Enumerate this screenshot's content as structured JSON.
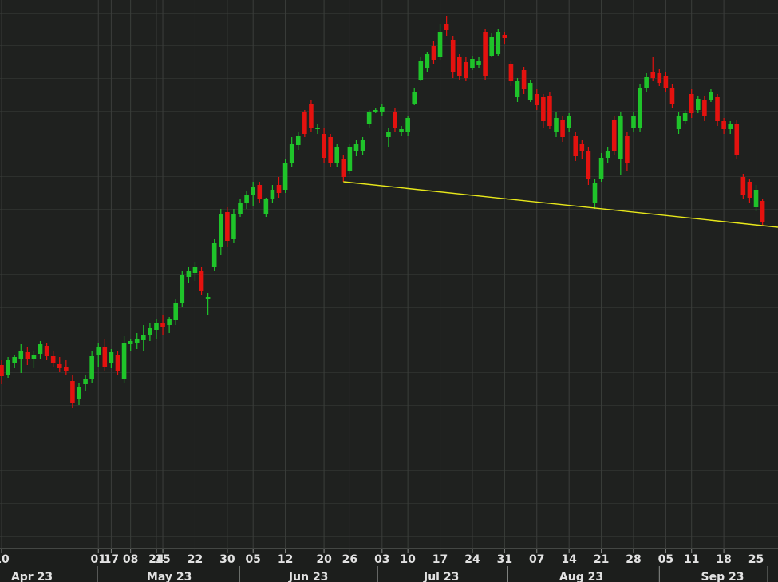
{
  "chart_data": {
    "type": "candlestick",
    "x": [
      0,
      1,
      2,
      3,
      4,
      5,
      6,
      7,
      8,
      9,
      10,
      11,
      12,
      13,
      14,
      15,
      16,
      17,
      18,
      19,
      20,
      21,
      22,
      23,
      24,
      25,
      26,
      27,
      28,
      29,
      30,
      31,
      32,
      33,
      34,
      35,
      36,
      37,
      38,
      39,
      40,
      41,
      42,
      43,
      44,
      45,
      46,
      47,
      48,
      49,
      50,
      51,
      52,
      53,
      54,
      55,
      56,
      57,
      58,
      59,
      60,
      61,
      62,
      63,
      64,
      65,
      66,
      67,
      68,
      69,
      70,
      71,
      72,
      73,
      74,
      75,
      76,
      77,
      78,
      79,
      80,
      81,
      82,
      83,
      84,
      85,
      86,
      87,
      88,
      89,
      90,
      91,
      92,
      93,
      94,
      95,
      96,
      97,
      98,
      99,
      100,
      101,
      102,
      103,
      104,
      105,
      106,
      107,
      108,
      109,
      110,
      111,
      112,
      113,
      114,
      115,
      116,
      117,
      118
    ],
    "open": [
      230,
      218,
      233,
      238,
      246,
      238,
      244,
      254,
      242,
      232,
      228,
      210,
      188,
      206,
      213,
      243,
      253,
      233,
      243,
      213,
      256,
      258,
      262,
      268,
      274,
      283,
      280,
      286,
      308,
      340,
      346,
      348,
      313,
      353,
      378,
      422,
      388,
      420,
      433,
      443,
      456,
      420,
      438,
      456,
      450,
      483,
      506,
      548,
      558,
      526,
      520,
      516,
      483,
      488,
      473,
      498,
      498,
      533,
      548,
      548,
      516,
      548,
      523,
      523,
      558,
      588,
      603,
      630,
      616,
      658,
      638,
      616,
      610,
      603,
      606,
      648,
      618,
      620,
      644,
      608,
      566,
      600,
      563,
      570,
      566,
      568,
      523,
      538,
      528,
      518,
      508,
      498,
      433,
      463,
      490,
      538,
      488,
      518,
      528,
      528,
      578,
      598,
      596,
      593,
      578,
      526,
      536,
      570,
      550,
      563,
      563,
      566,
      536,
      526,
      533,
      466,
      460,
      428,
      436
    ],
    "high": [
      236,
      240,
      243,
      256,
      253,
      248,
      260,
      258,
      248,
      240,
      236,
      218,
      208,
      218,
      248,
      258,
      263,
      250,
      248,
      266,
      263,
      270,
      280,
      283,
      288,
      293,
      290,
      313,
      348,
      353,
      360,
      353,
      320,
      388,
      426,
      428,
      426,
      438,
      448,
      460,
      460,
      440,
      456,
      466,
      488,
      516,
      523,
      550,
      563,
      533,
      528,
      520,
      508,
      493,
      508,
      513,
      516,
      550,
      553,
      558,
      528,
      552,
      530,
      543,
      578,
      616,
      623,
      636,
      658,
      668,
      643,
      620,
      616,
      618,
      616,
      652,
      646,
      652,
      648,
      612,
      590,
      604,
      588,
      576,
      570,
      573,
      548,
      543,
      546,
      523,
      513,
      503,
      463,
      496,
      503,
      543,
      548,
      523,
      548,
      583,
      596,
      616,
      602,
      598,
      583,
      548,
      550,
      576,
      568,
      568,
      576,
      570,
      540,
      536,
      538,
      470,
      464,
      456,
      438
    ],
    "low": [
      206,
      214,
      226,
      220,
      230,
      226,
      238,
      236,
      228,
      222,
      218,
      176,
      180,
      198,
      208,
      228,
      223,
      226,
      218,
      208,
      248,
      250,
      248,
      260,
      263,
      268,
      270,
      280,
      303,
      333,
      336,
      318,
      293,
      348,
      368,
      378,
      383,
      416,
      426,
      430,
      433,
      416,
      433,
      440,
      446,
      478,
      500,
      516,
      523,
      520,
      483,
      478,
      478,
      460,
      470,
      492,
      493,
      528,
      546,
      543,
      503,
      523,
      518,
      518,
      556,
      586,
      598,
      608,
      613,
      643,
      590,
      588,
      586,
      600,
      603,
      588,
      616,
      618,
      633,
      580,
      560,
      570,
      560,
      550,
      528,
      526,
      516,
      510,
      523,
      486,
      488,
      456,
      426,
      460,
      483,
      493,
      468,
      473,
      523,
      523,
      573,
      586,
      580,
      573,
      553,
      520,
      532,
      540,
      546,
      536,
      560,
      530,
      520,
      520,
      488,
      438,
      433,
      423,
      406
    ],
    "close": [
      216,
      236,
      240,
      248,
      238,
      243,
      256,
      242,
      233,
      226,
      223,
      183,
      203,
      213,
      242,
      253,
      228,
      246,
      223,
      258,
      260,
      263,
      268,
      276,
      283,
      278,
      288,
      308,
      343,
      348,
      353,
      323,
      316,
      383,
      420,
      386,
      420,
      433,
      443,
      453,
      438,
      438,
      450,
      446,
      483,
      508,
      518,
      520,
      528,
      528,
      490,
      483,
      503,
      466,
      503,
      508,
      512,
      548,
      550,
      554,
      523,
      528,
      526,
      540,
      573,
      612,
      620,
      613,
      648,
      650,
      598,
      593,
      590,
      614,
      612,
      593,
      642,
      648,
      640,
      586,
      586,
      576,
      584,
      556,
      536,
      530,
      540,
      516,
      542,
      492,
      498,
      463,
      458,
      490,
      498,
      498,
      543,
      483,
      543,
      578,
      592,
      590,
      584,
      578,
      558,
      543,
      546,
      546,
      564,
      542,
      572,
      536,
      526,
      532,
      493,
      443,
      440,
      450,
      410
    ],
    "up_color": "#1fc42a",
    "down_color": "#e4120f",
    "xlim": [
      -0.25,
      120.4
    ],
    "ylim": [
      0,
      688
    ],
    "xticks": [
      {
        "value": 0,
        "label": "10"
      },
      17,
      24,
      {
        "value": 15,
        "label": "01"
      },
      {
        "value": 20,
        "label": "08"
      },
      {
        "value": 25,
        "label": "15"
      },
      {
        "value": 30,
        "label": "22"
      },
      {
        "value": 35,
        "label": "30"
      },
      {
        "value": 39,
        "label": "05"
      },
      {
        "value": 44,
        "label": "12"
      },
      {
        "value": 50,
        "label": "20"
      },
      {
        "value": 54,
        "label": "26"
      },
      {
        "value": 59,
        "label": "03"
      },
      {
        "value": 63,
        "label": "10"
      },
      {
        "value": 68,
        "label": "17"
      },
      {
        "value": 73,
        "label": "24"
      },
      {
        "value": 78,
        "label": "31"
      },
      {
        "value": 83,
        "label": "07"
      },
      {
        "value": 88,
        "label": "14"
      },
      {
        "value": 93,
        "label": "21"
      },
      {
        "value": 98,
        "label": "28"
      },
      {
        "value": 103,
        "label": "05"
      },
      {
        "value": 107,
        "label": "11"
      },
      {
        "value": 112,
        "label": "18"
      },
      {
        "value": 117,
        "label": "25"
      }
    ],
    "month_labels": [
      {
        "value": 4.7,
        "label": "Apr 23"
      },
      {
        "value": 26,
        "label": "May 23"
      },
      {
        "value": 47.6,
        "label": "Jun 23"
      },
      {
        "value": 68.2,
        "label": "Jul 23"
      },
      {
        "value": 89.9,
        "label": "Aug 23"
      },
      {
        "value": 111.8,
        "label": "Sep 23"
      }
    ],
    "month_ticks": [
      14.85,
      36.9,
      58.3,
      78.5,
      102,
      118.8
    ],
    "grid": true,
    "trendline": {
      "x": [
        53,
        120.4
      ],
      "values": [
        460,
        403
      ],
      "color": "#e8e81a"
    }
  }
}
